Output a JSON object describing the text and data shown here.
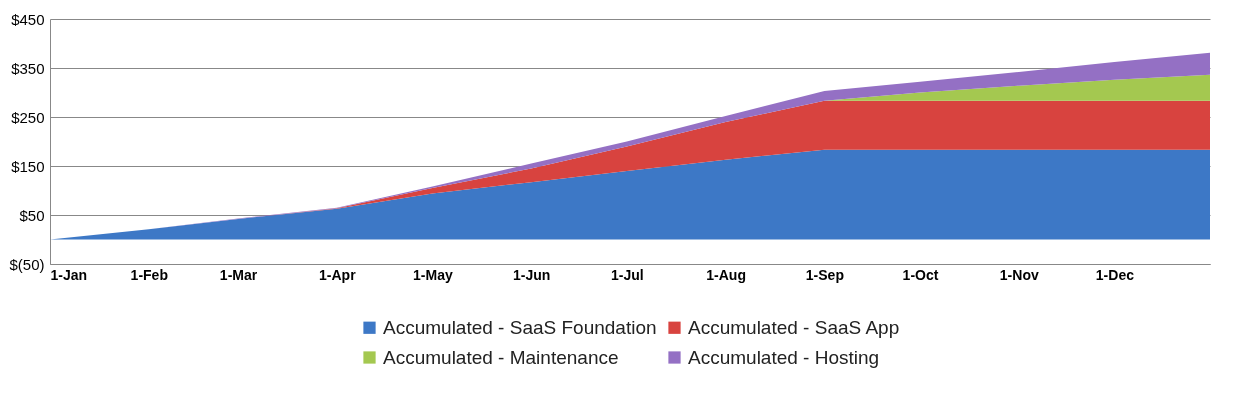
{
  "chart_data": {
    "type": "area",
    "stacked": true,
    "x": [
      "--01-01",
      "--02-01",
      "--03-01",
      "--04-01",
      "--05-01",
      "--06-01",
      "--07-01",
      "--08-01",
      "--09-01",
      "--10-01",
      "--11-01",
      "--12-01",
      "--12-31"
    ],
    "series": [
      {
        "name": "Accumulated - SaaS Foundation",
        "color": "#3d78c6",
        "values": [
          0,
          21,
          42,
          63,
          94,
          117,
          140,
          163,
          183,
          183,
          183,
          183,
          183
        ]
      },
      {
        "name": "Accumulated - SaaS App",
        "color": "#d8433f",
        "values": [
          0,
          0,
          0,
          1,
          11,
          28,
          50,
          77,
          100,
          100,
          100,
          100,
          100
        ]
      },
      {
        "name": "Accumulated - Maintenance",
        "color": "#a4c850",
        "values": [
          0,
          0,
          0,
          0,
          0,
          0,
          0,
          0,
          0,
          17,
          31,
          43,
          53
        ]
      },
      {
        "name": "Accumulated - Hosting",
        "color": "#9470c4",
        "values": [
          0,
          0,
          1,
          1,
          3,
          10,
          10,
          12,
          20,
          22,
          28,
          36,
          45
        ]
      }
    ],
    "xlim": [
      "--01-01",
      "--12-31"
    ],
    "xticks": [
      {
        "value": "--01-01",
        "label": "1-Jan"
      },
      {
        "value": "--02-01",
        "label": "1-Feb"
      },
      {
        "value": "--03-01",
        "label": "1-Mar"
      },
      {
        "value": "--04-01",
        "label": "1-Apr"
      },
      {
        "value": "--05-01",
        "label": "1-May"
      },
      {
        "value": "--06-01",
        "label": "1-Jun"
      },
      {
        "value": "--07-01",
        "label": "1-Jul"
      },
      {
        "value": "--08-01",
        "label": "1-Aug"
      },
      {
        "value": "--09-01",
        "label": "1-Sep"
      },
      {
        "value": "--10-01",
        "label": "1-Oct"
      },
      {
        "value": "--11-01",
        "label": "1-Nov"
      },
      {
        "value": "--12-01",
        "label": "1-Dec"
      }
    ],
    "ylim": [
      -50,
      450
    ],
    "yticks": [
      {
        "value": -50,
        "label": "$(50)"
      },
      {
        "value": 50,
        "label": "$50"
      },
      {
        "value": 150,
        "label": "$150"
      },
      {
        "value": 250,
        "label": "$250"
      },
      {
        "value": 350,
        "label": "$350"
      },
      {
        "value": 450,
        "label": "$450"
      }
    ],
    "grid": "y",
    "legend": "bottom"
  }
}
